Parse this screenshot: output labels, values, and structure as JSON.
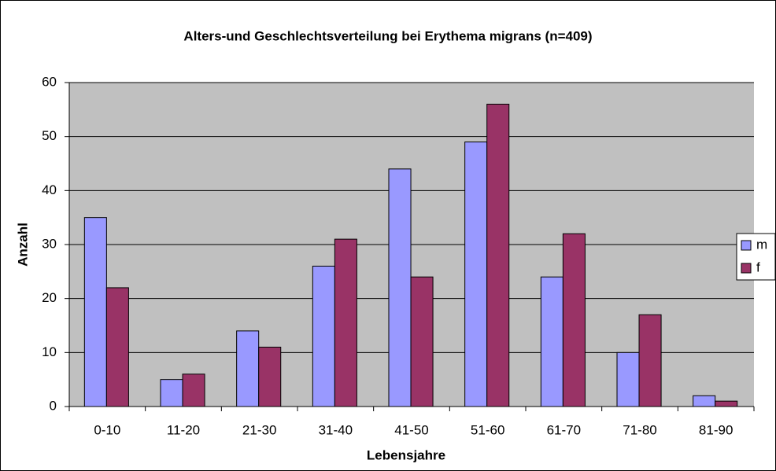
{
  "chart_data": {
    "type": "bar",
    "title": "Alters-und Geschlechtsverteilung bei Erythema migrans (n=409)",
    "xlabel": "Lebensjahre",
    "ylabel": "Anzahl",
    "categories": [
      "0-10",
      "11-20",
      "21-30",
      "31-40",
      "41-50",
      "51-60",
      "61-70",
      "71-80",
      "81-90"
    ],
    "series": [
      {
        "name": "m",
        "color": "#9999ff",
        "values": [
          35,
          5,
          14,
          26,
          44,
          49,
          24,
          10,
          2
        ]
      },
      {
        "name": "f",
        "color": "#993366",
        "values": [
          22,
          6,
          11,
          31,
          24,
          56,
          32,
          17,
          1
        ]
      }
    ],
    "ylim": [
      0,
      60
    ],
    "yticks": [
      0,
      10,
      20,
      30,
      40,
      50,
      60
    ],
    "grid": true,
    "legend": "right"
  }
}
